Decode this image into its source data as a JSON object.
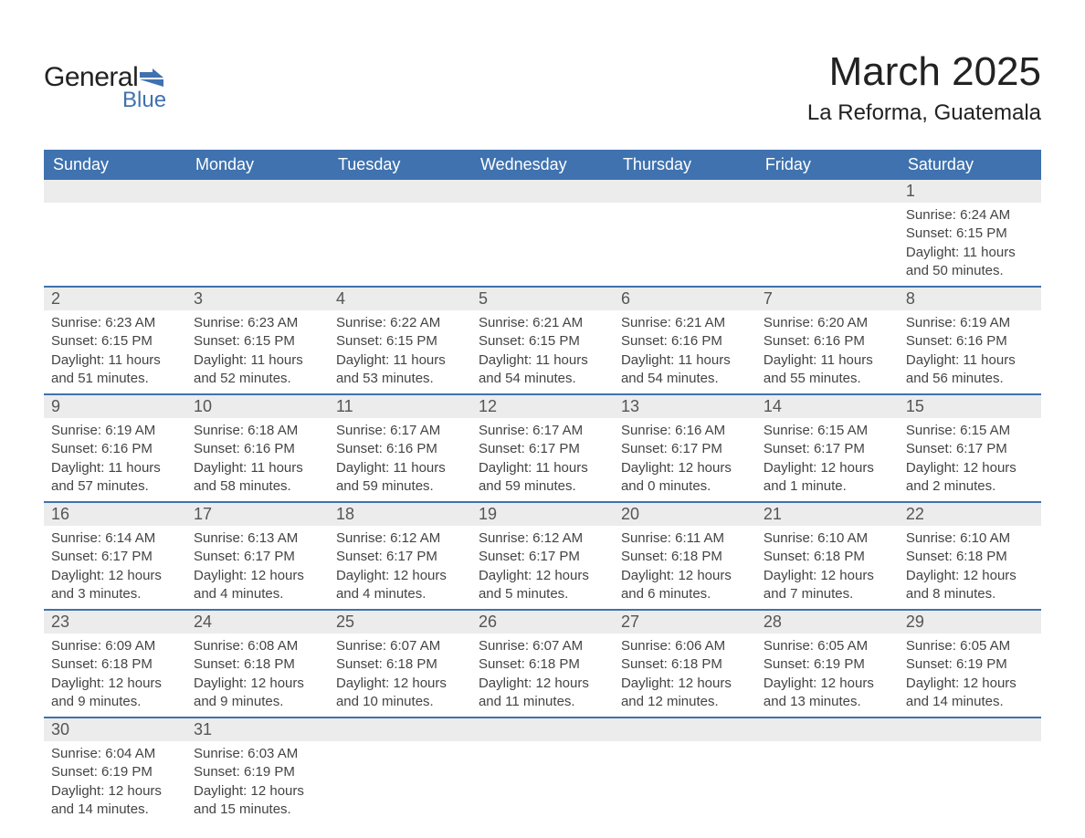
{
  "logo": {
    "main": "General",
    "sub": "Blue",
    "brand_color": "#3f72af"
  },
  "title": {
    "month": "March 2025",
    "location": "La Reforma, Guatemala"
  },
  "colors": {
    "header_bg": "#3f72af",
    "header_text": "#ffffff",
    "daynum_bg": "#ececec",
    "row_border": "#3f72af",
    "body_text": "#444444",
    "page_bg": "#ffffff"
  },
  "days_of_week": [
    "Sunday",
    "Monday",
    "Tuesday",
    "Wednesday",
    "Thursday",
    "Friday",
    "Saturday"
  ],
  "weeks": [
    [
      {
        "n": "",
        "sunrise": "",
        "sunset": "",
        "daylight": ""
      },
      {
        "n": "",
        "sunrise": "",
        "sunset": "",
        "daylight": ""
      },
      {
        "n": "",
        "sunrise": "",
        "sunset": "",
        "daylight": ""
      },
      {
        "n": "",
        "sunrise": "",
        "sunset": "",
        "daylight": ""
      },
      {
        "n": "",
        "sunrise": "",
        "sunset": "",
        "daylight": ""
      },
      {
        "n": "",
        "sunrise": "",
        "sunset": "",
        "daylight": ""
      },
      {
        "n": "1",
        "sunrise": "Sunrise: 6:24 AM",
        "sunset": "Sunset: 6:15 PM",
        "daylight": "Daylight: 11 hours and 50 minutes."
      }
    ],
    [
      {
        "n": "2",
        "sunrise": "Sunrise: 6:23 AM",
        "sunset": "Sunset: 6:15 PM",
        "daylight": "Daylight: 11 hours and 51 minutes."
      },
      {
        "n": "3",
        "sunrise": "Sunrise: 6:23 AM",
        "sunset": "Sunset: 6:15 PM",
        "daylight": "Daylight: 11 hours and 52 minutes."
      },
      {
        "n": "4",
        "sunrise": "Sunrise: 6:22 AM",
        "sunset": "Sunset: 6:15 PM",
        "daylight": "Daylight: 11 hours and 53 minutes."
      },
      {
        "n": "5",
        "sunrise": "Sunrise: 6:21 AM",
        "sunset": "Sunset: 6:15 PM",
        "daylight": "Daylight: 11 hours and 54 minutes."
      },
      {
        "n": "6",
        "sunrise": "Sunrise: 6:21 AM",
        "sunset": "Sunset: 6:16 PM",
        "daylight": "Daylight: 11 hours and 54 minutes."
      },
      {
        "n": "7",
        "sunrise": "Sunrise: 6:20 AM",
        "sunset": "Sunset: 6:16 PM",
        "daylight": "Daylight: 11 hours and 55 minutes."
      },
      {
        "n": "8",
        "sunrise": "Sunrise: 6:19 AM",
        "sunset": "Sunset: 6:16 PM",
        "daylight": "Daylight: 11 hours and 56 minutes."
      }
    ],
    [
      {
        "n": "9",
        "sunrise": "Sunrise: 6:19 AM",
        "sunset": "Sunset: 6:16 PM",
        "daylight": "Daylight: 11 hours and 57 minutes."
      },
      {
        "n": "10",
        "sunrise": "Sunrise: 6:18 AM",
        "sunset": "Sunset: 6:16 PM",
        "daylight": "Daylight: 11 hours and 58 minutes."
      },
      {
        "n": "11",
        "sunrise": "Sunrise: 6:17 AM",
        "sunset": "Sunset: 6:16 PM",
        "daylight": "Daylight: 11 hours and 59 minutes."
      },
      {
        "n": "12",
        "sunrise": "Sunrise: 6:17 AM",
        "sunset": "Sunset: 6:17 PM",
        "daylight": "Daylight: 11 hours and 59 minutes."
      },
      {
        "n": "13",
        "sunrise": "Sunrise: 6:16 AM",
        "sunset": "Sunset: 6:17 PM",
        "daylight": "Daylight: 12 hours and 0 minutes."
      },
      {
        "n": "14",
        "sunrise": "Sunrise: 6:15 AM",
        "sunset": "Sunset: 6:17 PM",
        "daylight": "Daylight: 12 hours and 1 minute."
      },
      {
        "n": "15",
        "sunrise": "Sunrise: 6:15 AM",
        "sunset": "Sunset: 6:17 PM",
        "daylight": "Daylight: 12 hours and 2 minutes."
      }
    ],
    [
      {
        "n": "16",
        "sunrise": "Sunrise: 6:14 AM",
        "sunset": "Sunset: 6:17 PM",
        "daylight": "Daylight: 12 hours and 3 minutes."
      },
      {
        "n": "17",
        "sunrise": "Sunrise: 6:13 AM",
        "sunset": "Sunset: 6:17 PM",
        "daylight": "Daylight: 12 hours and 4 minutes."
      },
      {
        "n": "18",
        "sunrise": "Sunrise: 6:12 AM",
        "sunset": "Sunset: 6:17 PM",
        "daylight": "Daylight: 12 hours and 4 minutes."
      },
      {
        "n": "19",
        "sunrise": "Sunrise: 6:12 AM",
        "sunset": "Sunset: 6:17 PM",
        "daylight": "Daylight: 12 hours and 5 minutes."
      },
      {
        "n": "20",
        "sunrise": "Sunrise: 6:11 AM",
        "sunset": "Sunset: 6:18 PM",
        "daylight": "Daylight: 12 hours and 6 minutes."
      },
      {
        "n": "21",
        "sunrise": "Sunrise: 6:10 AM",
        "sunset": "Sunset: 6:18 PM",
        "daylight": "Daylight: 12 hours and 7 minutes."
      },
      {
        "n": "22",
        "sunrise": "Sunrise: 6:10 AM",
        "sunset": "Sunset: 6:18 PM",
        "daylight": "Daylight: 12 hours and 8 minutes."
      }
    ],
    [
      {
        "n": "23",
        "sunrise": "Sunrise: 6:09 AM",
        "sunset": "Sunset: 6:18 PM",
        "daylight": "Daylight: 12 hours and 9 minutes."
      },
      {
        "n": "24",
        "sunrise": "Sunrise: 6:08 AM",
        "sunset": "Sunset: 6:18 PM",
        "daylight": "Daylight: 12 hours and 9 minutes."
      },
      {
        "n": "25",
        "sunrise": "Sunrise: 6:07 AM",
        "sunset": "Sunset: 6:18 PM",
        "daylight": "Daylight: 12 hours and 10 minutes."
      },
      {
        "n": "26",
        "sunrise": "Sunrise: 6:07 AM",
        "sunset": "Sunset: 6:18 PM",
        "daylight": "Daylight: 12 hours and 11 minutes."
      },
      {
        "n": "27",
        "sunrise": "Sunrise: 6:06 AM",
        "sunset": "Sunset: 6:18 PM",
        "daylight": "Daylight: 12 hours and 12 minutes."
      },
      {
        "n": "28",
        "sunrise": "Sunrise: 6:05 AM",
        "sunset": "Sunset: 6:19 PM",
        "daylight": "Daylight: 12 hours and 13 minutes."
      },
      {
        "n": "29",
        "sunrise": "Sunrise: 6:05 AM",
        "sunset": "Sunset: 6:19 PM",
        "daylight": "Daylight: 12 hours and 14 minutes."
      }
    ],
    [
      {
        "n": "30",
        "sunrise": "Sunrise: 6:04 AM",
        "sunset": "Sunset: 6:19 PM",
        "daylight": "Daylight: 12 hours and 14 minutes."
      },
      {
        "n": "31",
        "sunrise": "Sunrise: 6:03 AM",
        "sunset": "Sunset: 6:19 PM",
        "daylight": "Daylight: 12 hours and 15 minutes."
      },
      {
        "n": "",
        "sunrise": "",
        "sunset": "",
        "daylight": ""
      },
      {
        "n": "",
        "sunrise": "",
        "sunset": "",
        "daylight": ""
      },
      {
        "n": "",
        "sunrise": "",
        "sunset": "",
        "daylight": ""
      },
      {
        "n": "",
        "sunrise": "",
        "sunset": "",
        "daylight": ""
      },
      {
        "n": "",
        "sunrise": "",
        "sunset": "",
        "daylight": ""
      }
    ]
  ]
}
